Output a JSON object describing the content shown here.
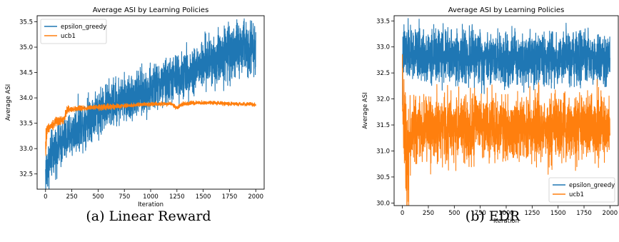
{
  "captions": [
    "(a) Linear Reward",
    "(b) EDR"
  ],
  "chart_data": [
    {
      "type": "line",
      "title": "Average ASI by Learning Policies",
      "xlabel": "Iteration",
      "ylabel": "Average ASI",
      "xlim": [
        -80,
        2080
      ],
      "ylim": [
        32.2,
        35.62
      ],
      "xticks": [
        0,
        250,
        500,
        750,
        1000,
        1250,
        1500,
        1750,
        2000
      ],
      "yticks": [
        32.5,
        33.0,
        33.5,
        34.0,
        34.5,
        35.0,
        35.5
      ],
      "ytick_labels": [
        "32.5",
        "33.0",
        "33.5",
        "34.0",
        "34.5",
        "35.0",
        "35.5"
      ],
      "legend_position": "upper-left",
      "grid": false,
      "series": [
        {
          "name": "epsilon_greedy",
          "color": "#1f77b4",
          "x": [
            0,
            50,
            100,
            150,
            200,
            250,
            300,
            350,
            400,
            450,
            500,
            600,
            700,
            800,
            900,
            1000,
            1100,
            1200,
            1300,
            1400,
            1500,
            1600,
            1700,
            1800,
            1900,
            2000
          ],
          "y": [
            32.5,
            32.85,
            33.0,
            33.1,
            33.2,
            33.3,
            33.4,
            33.5,
            33.6,
            33.65,
            33.75,
            33.85,
            33.95,
            34.0,
            34.08,
            34.15,
            34.25,
            34.35,
            34.45,
            34.55,
            34.65,
            34.75,
            34.85,
            34.95,
            35.0,
            35.05
          ],
          "noise_amplitude": [
            0.3,
            0.25,
            0.25,
            0.25,
            0.25,
            0.25,
            0.25,
            0.25,
            0.25,
            0.25,
            0.25,
            0.25,
            0.25,
            0.25,
            0.25,
            0.25,
            0.25,
            0.25,
            0.25,
            0.25,
            0.27,
            0.3,
            0.3,
            0.3,
            0.3,
            0.3
          ]
        },
        {
          "name": "ucb1",
          "color": "#ff7f0e",
          "x": [
            0,
            10,
            20,
            50,
            100,
            150,
            180,
            200,
            250,
            400,
            600,
            800,
            1000,
            1200,
            1250,
            1300,
            1400,
            1600,
            1800,
            2000
          ],
          "y": [
            33.0,
            33.3,
            33.4,
            33.45,
            33.52,
            33.55,
            33.6,
            33.75,
            33.78,
            33.8,
            33.82,
            33.85,
            33.88,
            33.88,
            33.8,
            33.88,
            33.9,
            33.9,
            33.88,
            33.87
          ],
          "noise_amplitude": [
            0.35,
            0.1,
            0.05,
            0.05,
            0.05,
            0.05,
            0.04,
            0.04,
            0.03,
            0.03,
            0.03,
            0.02,
            0.02,
            0.02,
            0.02,
            0.02,
            0.02,
            0.02,
            0.02,
            0.02
          ]
        }
      ]
    },
    {
      "type": "line",
      "title": "Average ASI by Learning Policies",
      "xlabel": "Iteration",
      "ylabel": "Average ASI",
      "xlim": [
        -80,
        2080
      ],
      "ylim": [
        29.95,
        33.6
      ],
      "xticks": [
        0,
        250,
        500,
        750,
        1000,
        1250,
        1500,
        1750,
        2000
      ],
      "yticks": [
        30.0,
        30.5,
        31.0,
        31.5,
        32.0,
        32.5,
        33.0,
        33.5
      ],
      "ytick_labels": [
        "30.0",
        "30.5",
        "31.0",
        "31.5",
        "32.0",
        "32.5",
        "33.0",
        "33.5"
      ],
      "legend_position": "lower-right",
      "grid": false,
      "series": [
        {
          "name": "epsilon_greedy",
          "color": "#1f77b4",
          "x": [
            0,
            10,
            30,
            100,
            500,
            1000,
            1500,
            2000
          ],
          "y": [
            32.3,
            32.85,
            32.9,
            32.85,
            32.82,
            32.8,
            32.78,
            32.75
          ],
          "noise_amplitude": [
            0.4,
            0.35,
            0.3,
            0.28,
            0.28,
            0.28,
            0.28,
            0.28
          ]
        },
        {
          "name": "ucb1",
          "color": "#ff7f0e",
          "x": [
            0,
            10,
            30,
            50,
            70,
            100,
            300,
            1000,
            1500,
            2000
          ],
          "y": [
            32.6,
            31.5,
            31.3,
            30.9,
            31.2,
            31.45,
            31.45,
            31.45,
            31.45,
            31.45
          ],
          "noise_amplitude": [
            0.3,
            0.4,
            0.5,
            0.7,
            0.4,
            0.35,
            0.35,
            0.35,
            0.35,
            0.35
          ]
        }
      ]
    }
  ]
}
